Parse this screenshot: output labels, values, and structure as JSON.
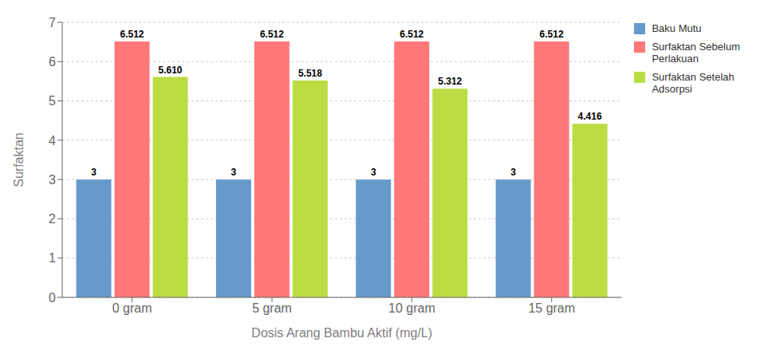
{
  "chart_data": {
    "type": "bar",
    "xlabel": "Dosis Arang Bambu Aktif (mg/L)",
    "ylabel": "Surfaktan",
    "categories": [
      "0 gram",
      "5 gram",
      "10 gram",
      "15 gram"
    ],
    "series": [
      {
        "name": "Baku Mutu",
        "color": "#6699CC",
        "values": [
          3,
          3,
          3,
          3
        ],
        "value_labels": [
          "3",
          "3",
          "3",
          "3"
        ]
      },
      {
        "name": "Surfaktan Sebelum\nPerlakuan",
        "color": "#FF7777",
        "values": [
          6.512,
          6.512,
          6.512,
          6.512
        ],
        "value_labels": [
          "6.512",
          "6.512",
          "6.512",
          "6.512"
        ]
      },
      {
        "name": "Surfaktan Setelah\nAdsorpsi",
        "color": "#BBDD44",
        "values": [
          5.61,
          5.518,
          5.312,
          4.416
        ],
        "value_labels": [
          "5.610",
          "5.518",
          "5.312",
          "4.416"
        ]
      }
    ],
    "ylim": [
      0,
      7
    ],
    "yticks": [
      0,
      1,
      2,
      3,
      4,
      5,
      6,
      7
    ],
    "grid": true,
    "legend": "upper right",
    "data_labels": true
  }
}
